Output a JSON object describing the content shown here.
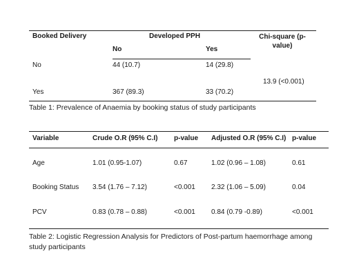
{
  "table1": {
    "headers": {
      "col1": "Booked Delivery",
      "group": "Developed PPH",
      "chi": "Chi-square (p-value)",
      "sub_no": "No",
      "sub_yes": "Yes"
    },
    "rows": [
      {
        "label": "No",
        "no": "44 (10.7)",
        "yes": "14 (29.8)"
      },
      {
        "label": "Yes",
        "no": "367 (89.3)",
        "yes": "33 (70.2)"
      }
    ],
    "chi_value": "13.9 (<0.001)",
    "caption": "Table 1: Prevalence of Anaemia by booking status of study participants"
  },
  "table2": {
    "headers": [
      "Variable",
      "Crude O.R (95% C.I)",
      "p-value",
      "Adjusted O.R (95% C.I)",
      "p-value"
    ],
    "rows": [
      [
        "Age",
        "1.01 (0.95-1.07)",
        "0.67",
        "1.02 (0.96 – 1.08)",
        "0.61"
      ],
      [
        "Booking Status",
        "3.54 (1.76 – 7.12)",
        "<0.001",
        "2.32 (1.06 – 5.09)",
        "0.04"
      ],
      [
        "PCV",
        "0.83 (0.78 – 0.88)",
        "<0.001",
        "0.84 (0.79 -0.89)",
        "<0.001"
      ]
    ],
    "caption": "Table 2: Logistic Regression Analysis for Predictors of Post-partum haemorrhage among study participants"
  }
}
